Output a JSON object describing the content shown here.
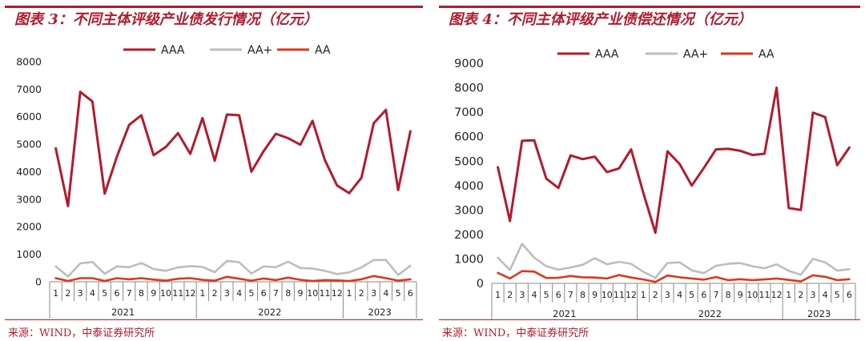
{
  "charts": [
    {
      "title": "图表 3：不同主体评级产业债发行情况（亿元）",
      "source": "来源：WIND，中泰证券研究所",
      "chart_data": {
        "type": "line",
        "y_ticks": [
          "0",
          "1000",
          "2000",
          "3000",
          "4000",
          "5000",
          "6000",
          "7000",
          "8000"
        ],
        "ylim": [
          0,
          8000
        ],
        "grid": false,
        "legend_position": "top",
        "categories": [
          "1",
          "2",
          "3",
          "4",
          "5",
          "6",
          "7",
          "8",
          "9",
          "10",
          "11",
          "12",
          "1",
          "2",
          "3",
          "4",
          "5",
          "6",
          "7",
          "8",
          "9",
          "10",
          "11",
          "12",
          "1",
          "2",
          "3",
          "4",
          "5",
          "6"
        ],
        "years": [
          {
            "label": "2021",
            "months": 12
          },
          {
            "label": "2022",
            "months": 12
          },
          {
            "label": "2023",
            "months": 6
          }
        ],
        "series": [
          {
            "name": "AAA",
            "color": "#b01c2e",
            "values": [
              4850,
              2750,
              6900,
              6550,
              3200,
              4550,
              5700,
              6050,
              4600,
              4900,
              5400,
              4650,
              5950,
              4400,
              6080,
              6050,
              4000,
              4750,
              5380,
              5220,
              4980,
              5850,
              4430,
              3500,
              3220,
              3780,
              5760,
              6250,
              3330,
              5470
            ]
          },
          {
            "name": "AA+",
            "color": "#bdbdbd",
            "values": [
              560,
              190,
              670,
              720,
              290,
              560,
              530,
              680,
              460,
              400,
              520,
              570,
              540,
              350,
              760,
              710,
              300,
              560,
              530,
              730,
              500,
              480,
              400,
              280,
              340,
              520,
              790,
              790,
              250,
              580
            ]
          },
          {
            "name": "AA",
            "color": "#d93a1a",
            "values": [
              130,
              30,
              130,
              130,
              30,
              130,
              90,
              130,
              80,
              40,
              110,
              130,
              70,
              40,
              180,
              110,
              40,
              120,
              60,
              150,
              70,
              30,
              60,
              50,
              30,
              90,
              210,
              130,
              40,
              90
            ]
          }
        ]
      }
    },
    {
      "title": "图表 4：不同主体评级产业债偿还情况（亿元）",
      "source": "来源：WIND，中泰证券研究所",
      "chart_data": {
        "type": "line",
        "y_ticks": [
          "0",
          "1000",
          "2000",
          "3000",
          "4000",
          "5000",
          "6000",
          "7000",
          "8000",
          "9000"
        ],
        "ylim": [
          0,
          9000
        ],
        "grid": false,
        "legend_position": "top",
        "categories": [
          "1",
          "2",
          "3",
          "4",
          "5",
          "6",
          "7",
          "8",
          "9",
          "10",
          "11",
          "12",
          "1",
          "2",
          "3",
          "4",
          "5",
          "6",
          "7",
          "8",
          "9",
          "10",
          "11",
          "12",
          "1",
          "2",
          "3",
          "4",
          "5",
          "6"
        ],
        "years": [
          {
            "label": "2021",
            "months": 12
          },
          {
            "label": "2022",
            "months": 12
          },
          {
            "label": "2023",
            "months": 6
          }
        ],
        "series": [
          {
            "name": "AAA",
            "color": "#b01c2e",
            "values": [
              4750,
              2550,
              5830,
              5850,
              4280,
              3900,
              5230,
              5080,
              5180,
              4550,
              4700,
              5480,
              3700,
              2070,
              5400,
              4880,
              4000,
              4720,
              5480,
              5500,
              5420,
              5250,
              5300,
              8000,
              3080,
              3000,
              6980,
              6800,
              4830,
              5550
            ]
          },
          {
            "name": "AA+",
            "color": "#bdbdbd",
            "values": [
              1050,
              550,
              1620,
              1050,
              700,
              560,
              650,
              760,
              1030,
              780,
              880,
              800,
              470,
              230,
              830,
              860,
              530,
              420,
              720,
              800,
              830,
              700,
              620,
              780,
              510,
              350,
              1000,
              860,
              520,
              580
            ]
          },
          {
            "name": "AA",
            "color": "#d93a1a",
            "values": [
              430,
              200,
              500,
              480,
              220,
              230,
              300,
              250,
              240,
              200,
              340,
              240,
              160,
              60,
              320,
              250,
              200,
              150,
              260,
              130,
              170,
              130,
              160,
              200,
              140,
              80,
              330,
              270,
              130,
              170
            ]
          }
        ]
      }
    }
  ]
}
